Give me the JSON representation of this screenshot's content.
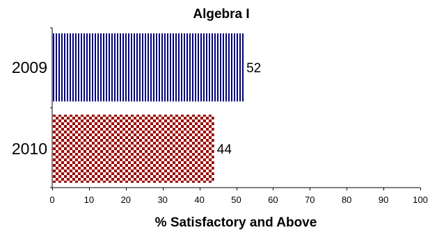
{
  "chart_data": {
    "type": "bar",
    "orientation": "horizontal",
    "title": "Algebra I",
    "xlabel": "% Satisfactory and Above",
    "ylabel": "",
    "categories": [
      "2009",
      "2010"
    ],
    "values": [
      52,
      44
    ],
    "xlim": [
      0,
      100
    ],
    "xticks": [
      "0",
      "10",
      "20",
      "30",
      "40",
      "50",
      "60",
      "70",
      "80",
      "90",
      "100"
    ],
    "data_labels": [
      "52",
      "44"
    ],
    "grid": false,
    "legend": "none",
    "bar_styles": [
      {
        "pattern": "vertical-stripes",
        "color": "#000080"
      },
      {
        "pattern": "checkerboard",
        "color": "#9b0000"
      }
    ]
  }
}
